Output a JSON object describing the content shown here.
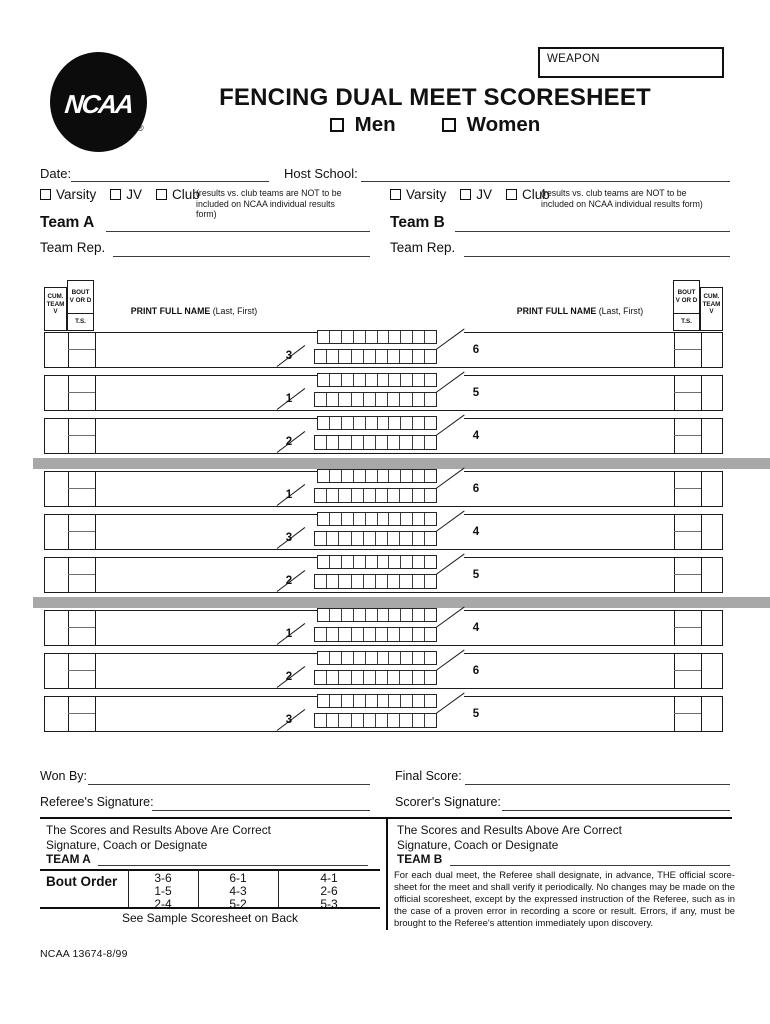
{
  "header": {
    "weapon_label": "WEAPON",
    "title": "FENCING DUAL MEET SCORESHEET",
    "gender": {
      "men": "Men",
      "women": "Women"
    },
    "logo": {
      "text": "NCAA",
      "registered": "®"
    }
  },
  "fields": {
    "date": "Date:",
    "host": "Host School:"
  },
  "sections": {
    "left": {
      "levels": [
        "Varsity",
        "JV",
        "Club"
      ],
      "note": [
        "(results vs. club teams are NOT to be",
        "included on NCAA individual results form)"
      ],
      "team_label": "Team A",
      "rep_label": "Team Rep."
    },
    "right": {
      "levels": [
        "Varsity",
        "JV",
        "Club"
      ],
      "note": [
        "(results vs. club teams are NOT to be",
        "included on NCAA individual results form)"
      ],
      "team_label": "Team B",
      "rep_label": "Team Rep."
    }
  },
  "table": {
    "header": {
      "cum": [
        "CUM.",
        "TEAM",
        "V"
      ],
      "bout": [
        "BOUT",
        "V OR D"
      ],
      "ts": "T.S.",
      "name": "PRINT FULL NAME",
      "name_hint": " (Last, First)"
    },
    "rows": [
      {
        "left": "3",
        "right": "6"
      },
      {
        "left": "1",
        "right": "5"
      },
      {
        "left": "2",
        "right": "4"
      },
      {
        "left": "1",
        "right": "6"
      },
      {
        "left": "3",
        "right": "4"
      },
      {
        "left": "2",
        "right": "5"
      },
      {
        "left": "1",
        "right": "4"
      },
      {
        "left": "2",
        "right": "6"
      },
      {
        "left": "3",
        "right": "5"
      }
    ],
    "separators_after": [
      3,
      6
    ],
    "tick_count": 10,
    "separator_color": "#a8a8a8"
  },
  "footer": {
    "won_by": "Won By:",
    "final_score": "Final Score:",
    "referee_sig": "Referee's Signature:",
    "scorer_sig": "Scorer's Signature:",
    "certify_line1": "The Scores and Results Above Are Correct",
    "certify_line2": "Signature, Coach or Designate",
    "team_a": "TEAM A",
    "team_b": "TEAM B",
    "bout_order": {
      "label": "Bout Order",
      "columns": [
        [
          "3-6",
          "1-5",
          "2-4"
        ],
        [
          "6-1",
          "4-3",
          "5-2"
        ],
        [
          "4-1",
          "2-6",
          "5-3"
        ]
      ],
      "note": "See Sample Scoresheet on Back"
    },
    "referee_note": "For each dual meet, the Referee shall designate, in advance, THE official score-sheet for the meet and shall verify it periodically. No changes may be made on the official scoresheet, except by the expressed instruction of the Referee, such as in the case of a proven error in recording a score or result. Errors, if any, must be brought to the Referee's attention immediately upon discovery.",
    "form_number": "NCAA 13674-8/99"
  }
}
